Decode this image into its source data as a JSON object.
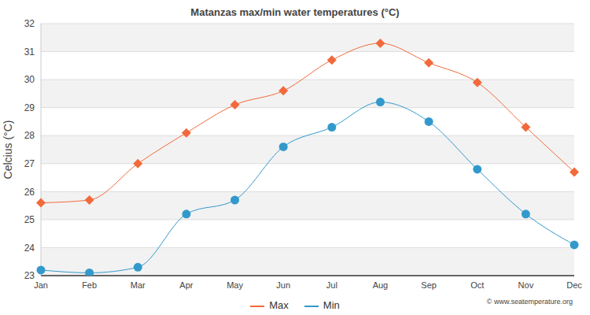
{
  "chart_data": {
    "type": "line",
    "title": "Matanzas max/min water temperatures (°C)",
    "y_label": "Celcius (°C)",
    "source": "© www.seatemperature.org",
    "categories": [
      "Jan",
      "Feb",
      "Mar",
      "Apr",
      "May",
      "Jun",
      "Jul",
      "Aug",
      "Sep",
      "Oct",
      "Nov",
      "Dec"
    ],
    "series": [
      {
        "name": "Max",
        "color": "#f26a3b",
        "marker": "diamond",
        "values": [
          25.6,
          25.7,
          27.0,
          28.1,
          29.1,
          29.6,
          30.7,
          31.3,
          30.6,
          29.9,
          28.3,
          26.7
        ]
      },
      {
        "name": "Min",
        "color": "#3399cc",
        "marker": "circle",
        "values": [
          23.2,
          23.1,
          23.3,
          25.2,
          25.7,
          27.6,
          28.3,
          29.2,
          28.5,
          26.8,
          25.2,
          24.1
        ]
      }
    ],
    "ylim": [
      23,
      32
    ],
    "yticks": [
      23,
      24,
      25,
      26,
      27,
      28,
      29,
      30,
      31,
      32
    ],
    "grid": true,
    "legend": "bottom"
  }
}
